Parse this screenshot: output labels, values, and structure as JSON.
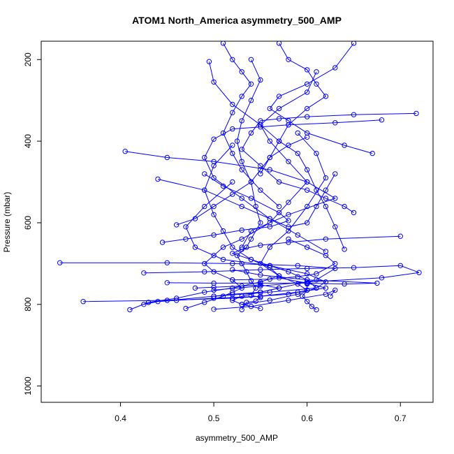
{
  "chart_data": {
    "type": "scatter",
    "title": "ATOM1 North_America asymmetry_500_AMP",
    "xlabel": "asymmetry_500_AMP",
    "ylabel": "Pressure (mbar)",
    "xlim": [
      0.315,
      0.735
    ],
    "ylim": [
      1040,
      155
    ],
    "y_reversed": true,
    "xticks": [
      0.4,
      0.5,
      0.6,
      0.7
    ],
    "yticks": [
      200,
      400,
      600,
      800,
      1000
    ],
    "grid": false,
    "legend": "none",
    "marker": "open-circle",
    "connected": true,
    "color": "#0000ff",
    "series": [
      {
        "x": [
          0.53,
          0.535,
          0.545,
          0.55,
          0.54,
          0.545,
          0.54,
          0.535,
          0.53,
          0.525,
          0.535,
          0.54,
          0.55,
          0.545,
          0.54,
          0.53,
          0.525,
          0.53,
          0.54,
          0.55,
          0.54
        ],
        "y": [
          813,
          795,
          792,
          783,
          778,
          760,
          742,
          720,
          700,
          680,
          660,
          640,
          600,
          560,
          500,
          450,
          400,
          350,
          300,
          250,
          200
        ]
      },
      {
        "x": [
          0.47,
          0.49,
          0.51,
          0.52,
          0.53,
          0.52,
          0.5,
          0.49,
          0.5,
          0.51,
          0.53,
          0.56,
          0.58,
          0.6,
          0.58,
          0.56,
          0.55,
          0.57,
          0.6,
          0.61
        ],
        "y": [
          810,
          795,
          780,
          770,
          760,
          740,
          720,
          700,
          680,
          660,
          640,
          600,
          550,
          500,
          450,
          400,
          360,
          320,
          280,
          230
        ]
      },
      {
        "x": [
          0.41,
          0.43,
          0.46,
          0.49,
          0.52,
          0.55,
          0.57,
          0.56,
          0.54,
          0.52,
          0.51,
          0.5,
          0.49,
          0.5,
          0.52
        ],
        "y": [
          813,
          795,
          785,
          770,
          760,
          745,
          730,
          710,
          690,
          660,
          620,
          580,
          520,
          460,
          410
        ]
      },
      {
        "x": [
          0.36,
          0.45,
          0.52,
          0.58,
          0.6,
          0.59,
          0.57,
          0.55,
          0.56,
          0.58,
          0.6,
          0.62,
          0.61,
          0.59
        ],
        "y": [
          793,
          790,
          785,
          775,
          765,
          750,
          730,
          700,
          660,
          620,
          560,
          490,
          430,
          380
        ]
      },
      {
        "x": [
          0.43,
          0.5,
          0.56,
          0.61,
          0.62,
          0.6,
          0.56,
          0.51,
          0.48,
          0.47,
          0.49,
          0.52
        ],
        "y": [
          795,
          780,
          770,
          760,
          745,
          725,
          705,
          690,
          660,
          610,
          560,
          500
        ]
      },
      {
        "x": [
          0.335,
          0.45,
          0.52,
          0.59,
          0.63,
          0.61,
          0.57,
          0.55,
          0.53,
          0.52,
          0.53,
          0.55
        ],
        "y": [
          698,
          698,
          700,
          705,
          712,
          740,
          760,
          770,
          780,
          790,
          800,
          810
        ]
      },
      {
        "x": [
          0.425,
          0.49,
          0.55,
          0.6,
          0.65,
          0.7,
          0.72,
          0.68,
          0.6,
          0.55,
          0.5
        ],
        "y": [
          723,
          720,
          715,
          712,
          710,
          705,
          722,
          735,
          745,
          755,
          765
        ]
      },
      {
        "x": [
          0.45,
          0.5,
          0.55,
          0.6,
          0.64,
          0.675,
          0.6,
          0.55,
          0.52
        ],
        "y": [
          747,
          748,
          748,
          748,
          750,
          748,
          740,
          728,
          715
        ]
      },
      {
        "x": [
          0.405,
          0.45,
          0.5,
          0.56,
          0.6,
          0.63,
          0.58,
          0.54,
          0.53
        ],
        "y": [
          425,
          440,
          450,
          470,
          500,
          540,
          580,
          620,
          660
        ]
      },
      {
        "x": [
          0.445,
          0.47,
          0.5,
          0.53,
          0.56,
          0.58,
          0.57,
          0.54,
          0.51,
          0.49
        ],
        "y": [
          648,
          640,
          630,
          618,
          610,
          595,
          575,
          540,
          510,
          480
        ]
      },
      {
        "x": [
          0.7,
          0.62,
          0.58,
          0.55,
          0.53,
          0.52,
          0.54,
          0.56,
          0.58,
          0.6,
          0.61,
          0.59,
          0.56,
          0.53
        ],
        "y": [
          633,
          640,
          648,
          655,
          665,
          675,
          690,
          705,
          720,
          740,
          760,
          775,
          790,
          800
        ]
      },
      {
        "x": [
          0.717,
          0.65,
          0.6,
          0.57,
          0.55,
          0.54,
          0.53,
          0.55,
          0.57,
          0.6,
          0.62,
          0.64,
          0.65
        ],
        "y": [
          332,
          335,
          340,
          345,
          350,
          380,
          420,
          460,
          500,
          520,
          540,
          560,
          575
        ]
      },
      {
        "x": [
          0.68,
          0.63,
          0.58,
          0.55,
          0.52,
          0.5,
          0.49,
          0.5,
          0.53,
          0.56,
          0.59,
          0.62
        ],
        "y": [
          348,
          355,
          360,
          365,
          370,
          395,
          440,
          490,
          540,
          590,
          630,
          670
        ]
      },
      {
        "x": [
          0.67,
          0.64,
          0.6,
          0.58,
          0.56,
          0.57,
          0.6,
          0.63,
          0.65
        ],
        "y": [
          430,
          410,
          380,
          350,
          320,
          290,
          260,
          220,
          160
        ]
      },
      {
        "x": [
          0.57,
          0.58,
          0.6,
          0.61,
          0.62,
          0.6,
          0.58,
          0.57,
          0.56,
          0.55
        ],
        "y": [
          160,
          200,
          225,
          260,
          290,
          320,
          360,
          400,
          440,
          480
        ]
      },
      {
        "x": [
          0.51,
          0.52,
          0.53,
          0.54,
          0.53,
          0.52,
          0.51,
          0.52,
          0.53,
          0.55,
          0.57
        ],
        "y": [
          160,
          200,
          230,
          260,
          290,
          330,
          380,
          430,
          470,
          520,
          560
        ]
      },
      {
        "x": [
          0.495,
          0.5,
          0.52,
          0.55,
          0.57,
          0.59,
          0.6,
          0.61,
          0.62,
          0.63,
          0.64
        ],
        "y": [
          205,
          255,
          310,
          360,
          400,
          430,
          470,
          520,
          560,
          610,
          665
        ]
      },
      {
        "x": [
          0.46,
          0.48,
          0.5,
          0.52,
          0.54,
          0.55,
          0.56,
          0.58,
          0.6
        ],
        "y": [
          605,
          590,
          560,
          530,
          500,
          470,
          440,
          410,
          390
        ]
      },
      {
        "x": [
          0.6,
          0.6,
          0.595,
          0.6,
          0.605,
          0.61
        ],
        "y": [
          750,
          765,
          780,
          793,
          805,
          813
        ]
      },
      {
        "x": [
          0.425,
          0.44,
          0.46,
          0.5,
          0.55,
          0.59,
          0.62,
          0.6,
          0.57
        ],
        "y": [
          800,
          793,
          790,
          785,
          780,
          770,
          760,
          748,
          735
        ]
      },
      {
        "x": [
          0.52,
          0.56,
          0.59,
          0.61,
          0.63,
          0.62,
          0.6,
          0.58
        ],
        "y": [
          740,
          738,
          732,
          725,
          700,
          680,
          660,
          640
        ]
      },
      {
        "x": [
          0.44,
          0.49,
          0.53,
          0.56,
          0.58,
          0.6,
          0.61,
          0.62,
          0.63
        ],
        "y": [
          493,
          520,
          560,
          590,
          610,
          600,
          560,
          520,
          480
        ]
      },
      {
        "x": [
          0.5,
          0.54,
          0.58,
          0.62,
          0.63,
          0.625
        ],
        "y": [
          812,
          805,
          790,
          775,
          765,
          780
        ]
      },
      {
        "x": [
          0.48,
          0.5,
          0.53,
          0.55,
          0.57,
          0.55,
          0.52,
          0.5
        ],
        "y": [
          760,
          758,
          755,
          752,
          760,
          770,
          775,
          780
        ]
      }
    ]
  }
}
